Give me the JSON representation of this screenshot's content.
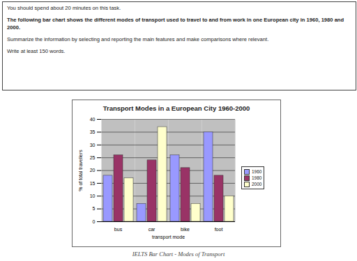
{
  "header": {
    "time": "You should spend about 20 minutes on this task.",
    "question": "The following bar chart shows the different modes of transport used to travel to and from work in one European city in 1960, 1980 and 2000.",
    "instruction": "Summarize the information by selecting and reporting the main features and make comparisons where relevant.",
    "words": "Write at least 150 words."
  },
  "chart_data": {
    "type": "bar",
    "title": "Transport Modes in a European City 1960-2000",
    "x_label": "transport mode",
    "y_label": "% of total travellers",
    "categories": [
      "bus",
      "car",
      "bike",
      "foot"
    ],
    "series": [
      {
        "name": "1960",
        "color": "#9999ff",
        "values": [
          18,
          7,
          26,
          35
        ]
      },
      {
        "name": "1980",
        "color": "#993366",
        "values": [
          26,
          24,
          21,
          18
        ]
      },
      {
        "name": "2000",
        "color": "#ffffcc",
        "values": [
          17,
          37,
          7,
          10
        ]
      }
    ],
    "ylim": [
      0,
      40
    ],
    "yticks": [
      0,
      5,
      10,
      15,
      20,
      25,
      30,
      35,
      40
    ],
    "grid": true,
    "legend": "right"
  },
  "caption": "IELTS Bar Chart - Modes of Transport"
}
